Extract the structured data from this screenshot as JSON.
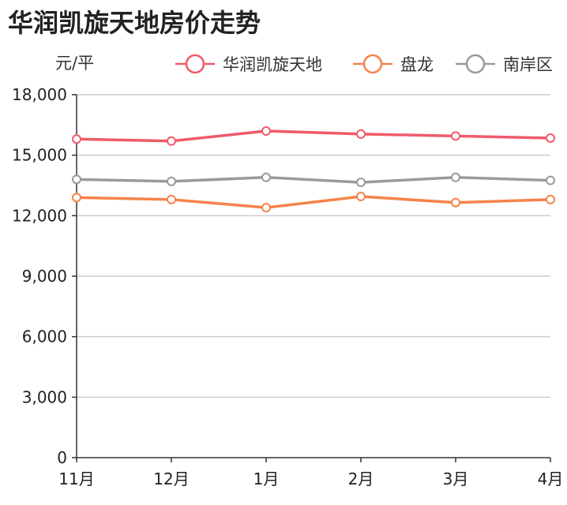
{
  "chart_data": {
    "type": "line",
    "title": "华润凯旋天地房价走势",
    "ylabel": "元/平",
    "xlabel": "",
    "categories": [
      "11月",
      "12月",
      "1月",
      "2月",
      "3月",
      "4月"
    ],
    "ylim": [
      0,
      18000
    ],
    "yticks": [
      0,
      3000,
      6000,
      9000,
      12000,
      15000,
      18000
    ],
    "ytick_labels": [
      "0",
      "3,000",
      "6,000",
      "9,000",
      "12,000",
      "15,000",
      "18,000"
    ],
    "grid": true,
    "legend_position": "top-right",
    "series": [
      {
        "name": "华润凯旋天地",
        "color": "#ef5a6a",
        "values": [
          15800,
          15700,
          16200,
          16050,
          15950,
          15850
        ]
      },
      {
        "name": "盘龙",
        "color": "#f5834a",
        "values": [
          12900,
          12800,
          12400,
          12950,
          12650,
          12800
        ]
      },
      {
        "name": "南岸区",
        "color": "#9a9a9a",
        "values": [
          13800,
          13700,
          13900,
          13650,
          13900,
          13750
        ]
      }
    ]
  }
}
